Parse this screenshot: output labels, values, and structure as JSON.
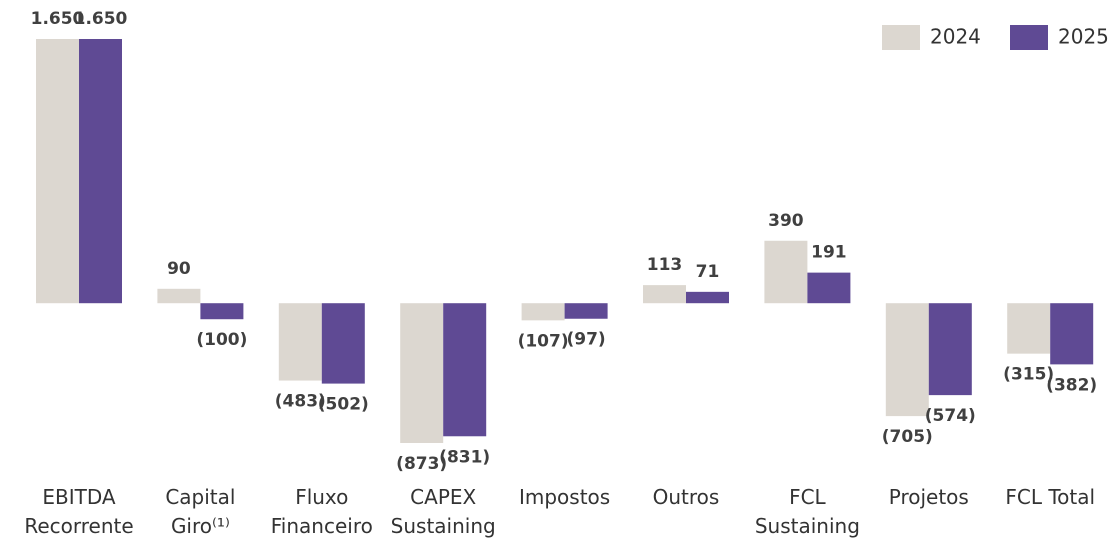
{
  "chart_data": {
    "type": "bar",
    "categories": [
      "EBITDA\nRecorrente",
      "Capital\nGiro⁽¹⁾",
      "Fluxo\nFinanceiro",
      "CAPEX\nSustaining",
      "Impostos",
      "Outros",
      "FCL\nSustaining",
      "Projetos",
      "FCL Total"
    ],
    "series": [
      {
        "name": "2024",
        "color": "#dcd7d0",
        "values": [
          1650,
          90,
          -483,
          -873,
          -107,
          113,
          390,
          -705,
          -315
        ],
        "value_labels": [
          "1.650",
          "90",
          "(483)",
          "(873)",
          "(107)",
          "113",
          "390",
          "(705)",
          "(315)"
        ]
      },
      {
        "name": "2025",
        "color": "#5f4a94",
        "values": [
          1650,
          -100,
          -502,
          -831,
          -97,
          71,
          191,
          -574,
          -382
        ],
        "value_labels": [
          "1.650",
          "(100)",
          "(502)",
          "(831)",
          "(97)",
          "71",
          "191",
          "(574)",
          "(382)"
        ]
      }
    ],
    "legend": "top-right"
  }
}
